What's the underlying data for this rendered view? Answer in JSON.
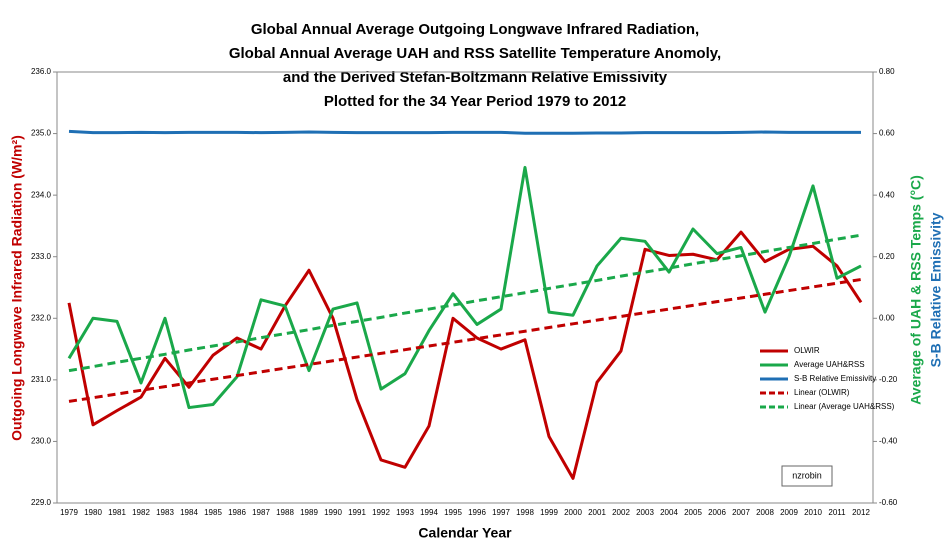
{
  "chart_data": {
    "type": "line",
    "title": [
      "Global Annual Average Outgoing Longwave Infrared Radiation,",
      "Global Annual Average UAH and RSS Satellite Temperature Anomoly,",
      "and the Derived Stefan-Boltzmann Relative Emissivity",
      "Plotted for the 34 Year Period 1979 to 2012"
    ],
    "x_label": "Calendar Year",
    "y_label": "Outgoing Longwave Infrared Radiation (W/m²)",
    "y2_labels": [
      "Average of UAH & RSS Temps (°C)",
      "S-B Relative Emissivity"
    ],
    "annotation": "nzrobin",
    "legend_position": "center-right",
    "categories": [
      "1979",
      "1980",
      "1981",
      "1982",
      "1983",
      "1984",
      "1985",
      "1986",
      "1987",
      "1988",
      "1989",
      "1990",
      "1991",
      "1992",
      "1993",
      "1994",
      "1995",
      "1996",
      "1997",
      "1998",
      "1999",
      "2000",
      "2001",
      "2002",
      "2003",
      "2004",
      "2005",
      "2006",
      "2007",
      "2008",
      "2009",
      "2010",
      "2011",
      "2012"
    ],
    "ylim": [
      229,
      236
    ],
    "yticks": [
      {
        "value": 229,
        "label": "229.0"
      },
      {
        "value": 230,
        "label": "230.0"
      },
      {
        "value": 231,
        "label": "231.0"
      },
      {
        "value": 232,
        "label": "232.0"
      },
      {
        "value": 233,
        "label": "233.0"
      },
      {
        "value": 234,
        "label": "234.0"
      },
      {
        "value": 235,
        "label": "235.0"
      },
      {
        "value": 236,
        "label": "236.0"
      }
    ],
    "y2lim": [
      -0.6,
      0.8
    ],
    "y2ticks": [
      {
        "value": -0.6,
        "label": "-0.60"
      },
      {
        "value": -0.4,
        "label": "-0.40"
      },
      {
        "value": -0.2,
        "label": "-0.20"
      },
      {
        "value": 0,
        "label": "0.00"
      },
      {
        "value": 0.2,
        "label": "0.20"
      },
      {
        "value": 0.4,
        "label": "0.40"
      },
      {
        "value": 0.6,
        "label": "0.60"
      },
      {
        "value": 0.8,
        "label": "0.80"
      }
    ],
    "series": [
      {
        "name": "OLWIR",
        "color": "#c00000",
        "dashed": false,
        "values": [
          232.25,
          230.27,
          230.5,
          230.72,
          231.35,
          230.88,
          231.4,
          231.68,
          231.5,
          232.2,
          232.78,
          232.0,
          230.68,
          229.7,
          229.58,
          230.25,
          232.0,
          231.68,
          231.5,
          231.65,
          230.08,
          229.4,
          230.96,
          231.47,
          233.12,
          233.02,
          233.04,
          232.95,
          233.4,
          232.92,
          233.12,
          233.17,
          232.85,
          232.26
        ]
      },
      {
        "name": "Average UAH&RSS",
        "color": "#1aa84a",
        "dashed": false,
        "axis": "y2",
        "values": [
          -0.13,
          0.0,
          -0.01,
          -0.21,
          0.0,
          -0.29,
          -0.28,
          -0.19,
          0.06,
          0.04,
          -0.17,
          0.03,
          0.05,
          -0.23,
          -0.18,
          -0.04,
          0.08,
          -0.02,
          0.03,
          0.49,
          0.02,
          0.01,
          0.17,
          0.26,
          0.25,
          0.15,
          0.29,
          0.21,
          0.23,
          0.02,
          0.2,
          0.43,
          0.13,
          0.17
        ]
      },
      {
        "name": "S-B Relative Emissivity",
        "color": "#1f6fb4",
        "dashed": false,
        "axis": "y2",
        "values": [
          0.607,
          0.603,
          0.603,
          0.604,
          0.603,
          0.604,
          0.604,
          0.604,
          0.603,
          0.604,
          0.605,
          0.604,
          0.603,
          0.603,
          0.603,
          0.603,
          0.604,
          0.604,
          0.604,
          0.601,
          0.601,
          0.601,
          0.602,
          0.602,
          0.603,
          0.603,
          0.603,
          0.603,
          0.604,
          0.605,
          0.604,
          0.604,
          0.604,
          0.604
        ]
      },
      {
        "name": "Linear (OLWIR)",
        "color": "#c00000",
        "dashed": true,
        "values": [
          230.65,
          230.71,
          230.77,
          230.83,
          230.89,
          230.95,
          231.01,
          231.07,
          231.13,
          231.19,
          231.25,
          231.31,
          231.37,
          231.43,
          231.49,
          231.55,
          231.61,
          231.67,
          231.73,
          231.79,
          231.85,
          231.91,
          231.97,
          232.03,
          232.09,
          232.15,
          232.21,
          232.27,
          232.33,
          232.39,
          232.45,
          232.51,
          232.57,
          232.63
        ]
      },
      {
        "name": "Linear (Average UAH&RSS)",
        "color": "#1aa84a",
        "dashed": true,
        "axis": "y2",
        "values": [
          -0.17,
          -0.157,
          -0.143,
          -0.13,
          -0.117,
          -0.103,
          -0.09,
          -0.077,
          -0.063,
          -0.05,
          -0.037,
          -0.023,
          -0.01,
          0.003,
          0.017,
          0.03,
          0.043,
          0.057,
          0.07,
          0.083,
          0.097,
          0.11,
          0.123,
          0.137,
          0.15,
          0.163,
          0.177,
          0.19,
          0.203,
          0.217,
          0.23,
          0.243,
          0.257,
          0.27
        ]
      }
    ]
  }
}
